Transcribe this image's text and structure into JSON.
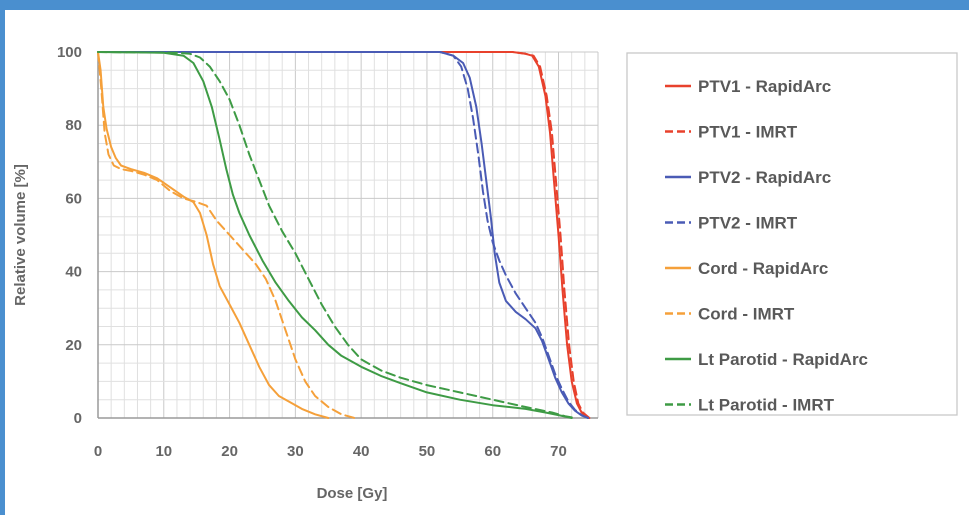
{
  "chart_data": {
    "type": "line",
    "title": "",
    "xlabel": "Dose [Gy]",
    "ylabel": "Relative volume [%]",
    "xlim": [
      0,
      76
    ],
    "ylim": [
      0,
      100
    ],
    "x_ticks": [
      0,
      10,
      20,
      30,
      40,
      50,
      60,
      70
    ],
    "y_ticks": [
      0,
      20,
      40,
      60,
      80,
      100
    ],
    "grid": true,
    "legend_position": "right",
    "series": [
      {
        "name": "PTV1 - RapidArc",
        "color": "#e8412c",
        "dash": "solid",
        "points": [
          [
            0,
            100
          ],
          [
            63,
            100
          ],
          [
            65,
            99.5
          ],
          [
            66,
            99
          ],
          [
            67,
            96
          ],
          [
            68,
            88
          ],
          [
            68.7,
            78
          ],
          [
            69.3,
            65
          ],
          [
            70,
            50
          ],
          [
            70.6,
            35
          ],
          [
            71.3,
            20
          ],
          [
            72,
            10
          ],
          [
            72.8,
            4
          ],
          [
            73.5,
            1.5
          ],
          [
            74.5,
            0
          ]
        ]
      },
      {
        "name": "PTV1 - IMRT",
        "color": "#e8412c",
        "dash": "dashed",
        "points": [
          [
            0,
            100
          ],
          [
            63,
            100
          ],
          [
            65,
            99.5
          ],
          [
            66.2,
            99
          ],
          [
            67.2,
            96
          ],
          [
            68.2,
            88
          ],
          [
            69,
            78
          ],
          [
            69.6,
            65
          ],
          [
            70.3,
            50
          ],
          [
            70.9,
            35
          ],
          [
            71.6,
            20
          ],
          [
            72.3,
            10
          ],
          [
            73,
            4
          ],
          [
            73.7,
            1.5
          ],
          [
            74.7,
            0
          ]
        ]
      },
      {
        "name": "PTV2 - RapidArc",
        "color": "#4a5bb5",
        "dash": "solid",
        "points": [
          [
            0,
            100
          ],
          [
            52,
            100
          ],
          [
            54,
            99
          ],
          [
            55.5,
            97
          ],
          [
            56.5,
            93
          ],
          [
            57.5,
            85
          ],
          [
            58.3,
            75
          ],
          [
            59,
            65
          ],
          [
            59.7,
            55
          ],
          [
            60.3,
            45
          ],
          [
            61,
            37
          ],
          [
            62,
            32
          ],
          [
            63.5,
            29
          ],
          [
            65,
            27
          ],
          [
            66.5,
            24.5
          ],
          [
            67.5,
            21
          ],
          [
            68.5,
            16
          ],
          [
            69.5,
            11
          ],
          [
            70.5,
            7
          ],
          [
            71.5,
            4
          ],
          [
            72.5,
            2
          ],
          [
            73.5,
            0.7
          ],
          [
            74.5,
            0
          ]
        ]
      },
      {
        "name": "PTV2 - IMRT",
        "color": "#4a5bb5",
        "dash": "dashed",
        "points": [
          [
            0,
            100
          ],
          [
            52,
            100
          ],
          [
            54,
            99
          ],
          [
            55.2,
            96
          ],
          [
            56.2,
            90
          ],
          [
            57,
            82
          ],
          [
            57.8,
            72
          ],
          [
            58.5,
            62
          ],
          [
            59.2,
            54
          ],
          [
            60,
            48
          ],
          [
            61,
            43
          ],
          [
            62,
            39
          ],
          [
            63.5,
            34
          ],
          [
            65,
            30
          ],
          [
            66.5,
            26
          ],
          [
            67.5,
            22
          ],
          [
            68.5,
            17
          ],
          [
            69.5,
            12
          ],
          [
            70.5,
            8
          ],
          [
            71.5,
            4.5
          ],
          [
            72.5,
            2.2
          ],
          [
            73.5,
            0.8
          ],
          [
            74.5,
            0
          ]
        ]
      },
      {
        "name": "Cord - RapidArc",
        "color": "#f5a03a",
        "dash": "solid",
        "points": [
          [
            0,
            100
          ],
          [
            0.4,
            95
          ],
          [
            0.8,
            85
          ],
          [
            1.3,
            79
          ],
          [
            2,
            74
          ],
          [
            2.7,
            71
          ],
          [
            3.5,
            69
          ],
          [
            5,
            68
          ],
          [
            7,
            67
          ],
          [
            9,
            65.5
          ],
          [
            11,
            63
          ],
          [
            13,
            60.5
          ],
          [
            14.5,
            59
          ],
          [
            15.5,
            56
          ],
          [
            16.5,
            50
          ],
          [
            17.5,
            42
          ],
          [
            18.5,
            36
          ],
          [
            20,
            31
          ],
          [
            21.5,
            26
          ],
          [
            23,
            20
          ],
          [
            24.5,
            14
          ],
          [
            26,
            9
          ],
          [
            27.5,
            6
          ],
          [
            29,
            4.5
          ],
          [
            31,
            2.5
          ],
          [
            33,
            1
          ],
          [
            35,
            0
          ]
        ]
      },
      {
        "name": "Cord - IMRT",
        "color": "#f5a03a",
        "dash": "dashed",
        "points": [
          [
            0,
            100
          ],
          [
            0.5,
            90
          ],
          [
            1,
            78
          ],
          [
            1.6,
            72
          ],
          [
            2.4,
            69
          ],
          [
            3.5,
            68
          ],
          [
            5,
            67.5
          ],
          [
            7,
            66.5
          ],
          [
            9,
            65
          ],
          [
            11,
            62
          ],
          [
            13,
            60
          ],
          [
            15,
            59
          ],
          [
            16.5,
            58
          ],
          [
            18,
            54
          ],
          [
            20,
            50
          ],
          [
            22,
            46
          ],
          [
            24,
            42
          ],
          [
            25.5,
            38
          ],
          [
            27,
            32
          ],
          [
            28.5,
            24
          ],
          [
            30,
            16
          ],
          [
            31.5,
            10
          ],
          [
            33,
            6
          ],
          [
            35,
            3
          ],
          [
            37,
            1
          ],
          [
            39,
            0
          ]
        ]
      },
      {
        "name": "Lt Parotid - RapidArc",
        "color": "#3e9b45",
        "dash": "solid",
        "points": [
          [
            0,
            100
          ],
          [
            10,
            99.8
          ],
          [
            13,
            99
          ],
          [
            14.5,
            97
          ],
          [
            16,
            92
          ],
          [
            17.3,
            85
          ],
          [
            18.5,
            76
          ],
          [
            19.5,
            68
          ],
          [
            20.5,
            61
          ],
          [
            21.5,
            56
          ],
          [
            23,
            50
          ],
          [
            25,
            43
          ],
          [
            27,
            37
          ],
          [
            29,
            32
          ],
          [
            31,
            27.5
          ],
          [
            33,
            24
          ],
          [
            35,
            20
          ],
          [
            37,
            17
          ],
          [
            40,
            14
          ],
          [
            43,
            11.5
          ],
          [
            46,
            9.5
          ],
          [
            50,
            7
          ],
          [
            55,
            5
          ],
          [
            60,
            3.5
          ],
          [
            65,
            2.5
          ],
          [
            68,
            1.5
          ],
          [
            70,
            0.8
          ],
          [
            72,
            0
          ]
        ]
      },
      {
        "name": "Lt Parotid - IMRT",
        "color": "#3e9b45",
        "dash": "dashed",
        "points": [
          [
            0,
            100
          ],
          [
            12,
            99.8
          ],
          [
            14,
            99.5
          ],
          [
            15.5,
            98.5
          ],
          [
            17,
            96
          ],
          [
            18.5,
            92
          ],
          [
            20,
            87
          ],
          [
            21.5,
            80
          ],
          [
            23,
            72
          ],
          [
            24.5,
            65
          ],
          [
            26,
            58
          ],
          [
            28,
            51
          ],
          [
            30,
            45
          ],
          [
            32,
            38
          ],
          [
            34,
            31
          ],
          [
            36,
            25
          ],
          [
            38,
            20
          ],
          [
            40,
            16
          ],
          [
            43,
            13
          ],
          [
            46,
            11
          ],
          [
            50,
            9
          ],
          [
            55,
            7
          ],
          [
            60,
            5
          ],
          [
            65,
            3
          ],
          [
            69,
            1.5
          ],
          [
            71,
            0.5
          ],
          [
            72.5,
            0
          ]
        ]
      }
    ]
  }
}
